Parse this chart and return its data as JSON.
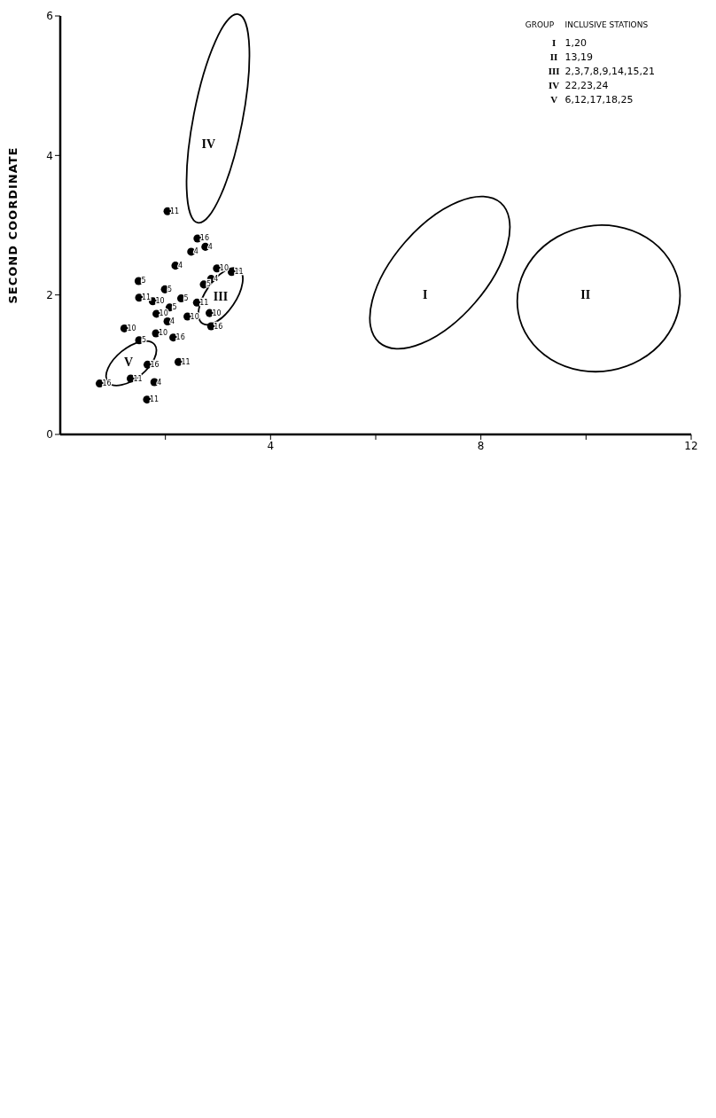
{
  "chart_data": {
    "type": "scatter",
    "ylabel": "SECOND COORDINATE",
    "xlim": [
      0,
      12
    ],
    "xticks": [
      {
        "value": 2,
        "label": null
      },
      4,
      {
        "value": 6,
        "label": null
      },
      8,
      {
        "value": 10,
        "label": null
      },
      12
    ],
    "ylim": [
      0,
      6
    ],
    "yticks": [
      0,
      2,
      4,
      6
    ],
    "marker": "circle",
    "series": [
      {
        "name": "11",
        "color": "#000000",
        "x": [
          3.26,
          2.6,
          2.25,
          1.5,
          1.65,
          1.34,
          2.04
        ],
        "values": [
          2.33,
          1.89,
          1.04,
          1.96,
          0.5,
          0.8,
          3.2
        ]
      },
      {
        "name": "10",
        "color": "#000000",
        "x": [
          2.98,
          2.84,
          2.42,
          1.76,
          1.83,
          1.82,
          1.22
        ],
        "values": [
          2.38,
          1.74,
          1.69,
          1.91,
          1.73,
          1.45,
          1.52
        ]
      },
      {
        "name": "4",
        "color": "#000000",
        "x": [
          2.87,
          2.76,
          2.49,
          2.19,
          2.04,
          1.79
        ],
        "values": [
          2.23,
          2.69,
          2.62,
          2.42,
          1.62,
          0.75
        ]
      },
      {
        "name": "5",
        "color": "#000000",
        "x": [
          2.73,
          2.3,
          1.99,
          2.08,
          1.49,
          1.5
        ],
        "values": [
          2.15,
          1.95,
          2.08,
          1.82,
          2.2,
          1.35
        ]
      },
      {
        "name": "16",
        "color": "#000000",
        "x": [
          2.87,
          2.61,
          2.15,
          1.66,
          0.75
        ],
        "values": [
          1.55,
          2.81,
          1.39,
          1.0,
          0.73
        ]
      }
    ],
    "annotations": [
      "I",
      "II",
      "III",
      "IV",
      "V",
      "GROUP",
      "INCLUSIVE  STATIONS",
      "I",
      "1,20",
      "II",
      "13,19",
      "III",
      "2,3,7,8,9,14,15,21",
      "IV",
      "22,23,24",
      "V",
      "6,12,17,18,25"
    ]
  }
}
